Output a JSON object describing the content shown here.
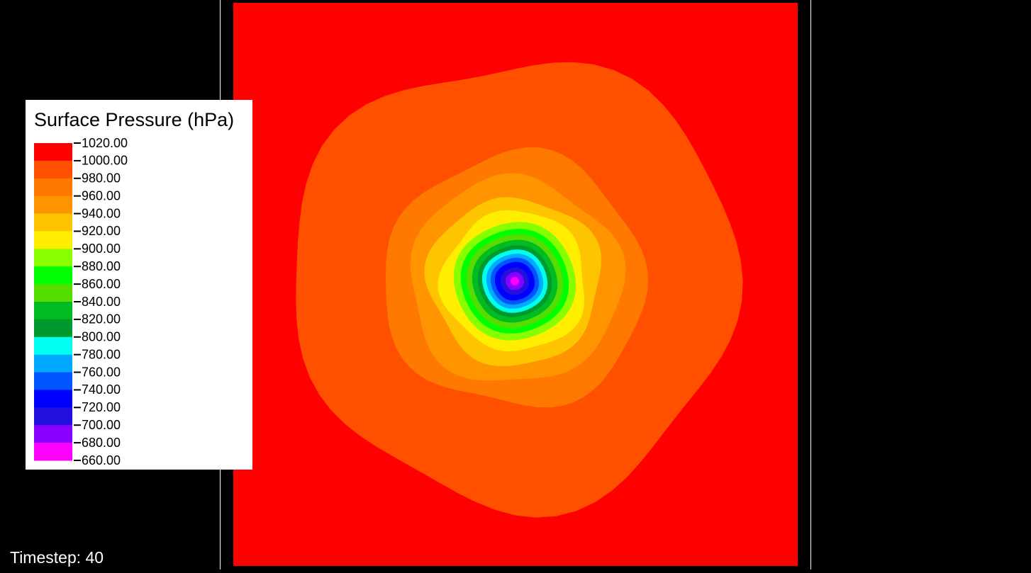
{
  "legend": {
    "title": "Surface Pressure (hPa)",
    "labels": [
      "1020.00",
      "1000.00",
      "980.00",
      "960.00",
      "940.00",
      "920.00",
      "900.00",
      "880.00",
      "860.00",
      "840.00",
      "820.00",
      "800.00",
      "780.00",
      "760.00",
      "740.00",
      "720.00",
      "700.00",
      "680.00",
      "660.00"
    ],
    "colors": [
      "#ff0000",
      "#ff5000",
      "#ff7800",
      "#ff9400",
      "#ffc400",
      "#ffee00",
      "#88ff00",
      "#00ff00",
      "#55dd00",
      "#00bb22",
      "#00992e",
      "#00ffee",
      "#00aaff",
      "#0055ff",
      "#0000ff",
      "#2211dd",
      "#8800ff",
      "#ff00ff"
    ]
  },
  "timestep": "Timestep: 40"
}
